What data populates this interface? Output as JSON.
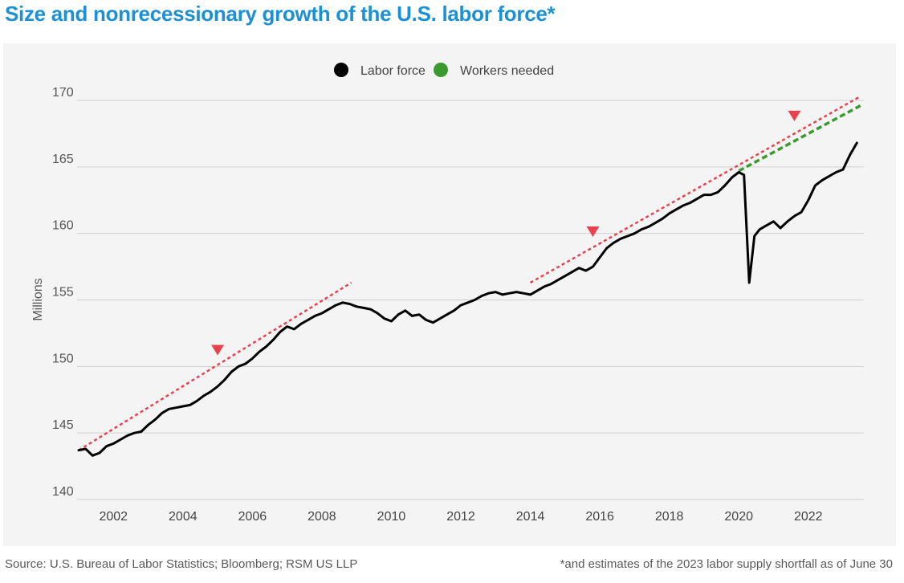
{
  "title": "Size and nonrecessionary growth of the U.S. labor force*",
  "footer": {
    "source": "Source: U.S. Bureau of Labor Statistics; Bloomberg; RSM US LLP",
    "note": "*and estimates of the 2023 labor supply shortfall as of June 30"
  },
  "colors": {
    "title": "#1a90d6",
    "labor_force": "#000000",
    "workers_needed": "#3a9a2e",
    "trend": "#e8424e",
    "marker": "#e8424e",
    "grid": "#d0d0d0",
    "panel": "#f4f4f4"
  },
  "chart_data": {
    "type": "line",
    "title": "Size and nonrecessionary growth of the U.S. labor force*",
    "xlabel": "",
    "ylabel": "Millions",
    "xlim": [
      2001,
      2023.6
    ],
    "ylim": [
      140,
      170
    ],
    "x_ticks": [
      2002,
      2004,
      2006,
      2008,
      2010,
      2012,
      2014,
      2016,
      2018,
      2020,
      2022
    ],
    "y_ticks": [
      140,
      145,
      150,
      155,
      160,
      165,
      170
    ],
    "grid": true,
    "legend": {
      "position": "top-center",
      "entries": [
        {
          "name": "Labor force",
          "color": "#000000"
        },
        {
          "name": "Workers needed",
          "color": "#3a9a2e"
        }
      ]
    },
    "series": [
      {
        "name": "Labor force",
        "style": "solid",
        "x": [
          2001.0,
          2001.2,
          2001.4,
          2001.6,
          2001.8,
          2002.0,
          2002.2,
          2002.4,
          2002.6,
          2002.8,
          2003.0,
          2003.2,
          2003.4,
          2003.6,
          2003.8,
          2004.0,
          2004.2,
          2004.4,
          2004.6,
          2004.8,
          2005.0,
          2005.2,
          2005.4,
          2005.6,
          2005.8,
          2006.0,
          2006.2,
          2006.4,
          2006.6,
          2006.8,
          2007.0,
          2007.2,
          2007.4,
          2007.6,
          2007.8,
          2008.0,
          2008.2,
          2008.4,
          2008.6,
          2008.8,
          2009.0,
          2009.2,
          2009.4,
          2009.6,
          2009.8,
          2010.0,
          2010.2,
          2010.4,
          2010.6,
          2010.8,
          2011.0,
          2011.2,
          2011.4,
          2011.6,
          2011.8,
          2012.0,
          2012.2,
          2012.4,
          2012.6,
          2012.8,
          2013.0,
          2013.2,
          2013.4,
          2013.6,
          2013.8,
          2014.0,
          2014.2,
          2014.4,
          2014.6,
          2014.8,
          2015.0,
          2015.2,
          2015.4,
          2015.6,
          2015.8,
          2016.0,
          2016.2,
          2016.4,
          2016.6,
          2016.8,
          2017.0,
          2017.2,
          2017.4,
          2017.6,
          2017.8,
          2018.0,
          2018.2,
          2018.4,
          2018.6,
          2018.8,
          2019.0,
          2019.2,
          2019.4,
          2019.6,
          2019.8,
          2020.0,
          2020.15,
          2020.3,
          2020.45,
          2020.6,
          2020.8,
          2021.0,
          2021.2,
          2021.4,
          2021.6,
          2021.8,
          2022.0,
          2022.2,
          2022.4,
          2022.6,
          2022.8,
          2023.0,
          2023.2,
          2023.4
        ],
        "values": [
          143.7,
          143.8,
          143.3,
          143.5,
          144.0,
          144.2,
          144.5,
          144.8,
          145.0,
          145.1,
          145.6,
          146.0,
          146.5,
          146.8,
          146.9,
          147.0,
          147.1,
          147.4,
          147.8,
          148.1,
          148.5,
          149.0,
          149.6,
          150.0,
          150.2,
          150.6,
          151.1,
          151.5,
          152.0,
          152.6,
          153.0,
          152.8,
          153.2,
          153.5,
          153.8,
          154.0,
          154.3,
          154.6,
          154.8,
          154.7,
          154.5,
          154.4,
          154.3,
          154.0,
          153.6,
          153.4,
          153.9,
          154.2,
          153.8,
          153.9,
          153.5,
          153.3,
          153.6,
          153.9,
          154.2,
          154.6,
          154.8,
          155.0,
          155.3,
          155.5,
          155.6,
          155.4,
          155.5,
          155.6,
          155.5,
          155.4,
          155.7,
          156.0,
          156.2,
          156.5,
          156.8,
          157.1,
          157.4,
          157.2,
          157.5,
          158.2,
          158.9,
          159.3,
          159.6,
          159.8,
          160.0,
          160.3,
          160.5,
          160.8,
          161.1,
          161.5,
          161.8,
          162.1,
          162.3,
          162.6,
          162.9,
          162.9,
          163.1,
          163.6,
          164.2,
          164.6,
          164.4,
          156.3,
          159.8,
          160.3,
          160.6,
          160.9,
          160.4,
          160.9,
          161.3,
          161.6,
          162.5,
          163.6,
          164.0,
          164.3,
          164.6,
          164.8,
          165.9,
          166.8
        ]
      },
      {
        "name": "Workers needed",
        "style": "dashed",
        "x": [
          2020.0,
          2023.5
        ],
        "values": [
          164.7,
          169.6
        ]
      },
      {
        "name": "Trend 2001-2008",
        "style": "dotted",
        "x": [
          2001.0,
          2008.85
        ],
        "values": [
          143.7,
          156.3
        ]
      },
      {
        "name": "Trend 2014-2023",
        "style": "dotted",
        "x": [
          2014.0,
          2023.5
        ],
        "values": [
          156.3,
          170.3
        ]
      }
    ],
    "markers": [
      {
        "x": 2005.0,
        "y": 151.2
      },
      {
        "x": 2015.8,
        "y": 160.1
      },
      {
        "x": 2021.6,
        "y": 168.8
      }
    ]
  }
}
